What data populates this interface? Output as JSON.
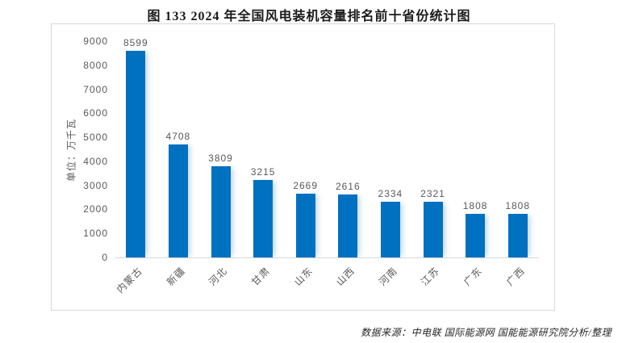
{
  "page": {
    "title": "图 133 2024 年全国风电装机容量排名前十省份统计图",
    "source_note": "数据来源：中电联 国际能源网 国能能源研究院分析/整理"
  },
  "chart_data": {
    "type": "bar",
    "title": "图 133 2024 年全国风电装机容量排名前十省份统计图",
    "categories": [
      "内蒙古",
      "新疆",
      "河北",
      "甘肃",
      "山东",
      "山西",
      "河南",
      "江苏",
      "广东",
      "广西"
    ],
    "values": [
      8599,
      4708,
      3809,
      3215,
      2669,
      2616,
      2334,
      2321,
      1808,
      1808
    ],
    "xlabel": "",
    "ylabel": "单位：万千瓦",
    "ylim": [
      0,
      9000
    ],
    "yticks": [
      0,
      1000,
      2000,
      3000,
      4000,
      5000,
      6000,
      7000,
      8000,
      9000
    ],
    "grid": false,
    "legend_position": "none",
    "data_labels": true,
    "colors": {
      "bar": "#0070C0",
      "axis_text": "#595959",
      "axis_line": "#d9d9d9",
      "frame_border": "#d9d9d9",
      "title_text": "#1a1a1a"
    },
    "source_note": "数据来源：中电联 国际能源网 国能能源研究院分析/整理"
  }
}
